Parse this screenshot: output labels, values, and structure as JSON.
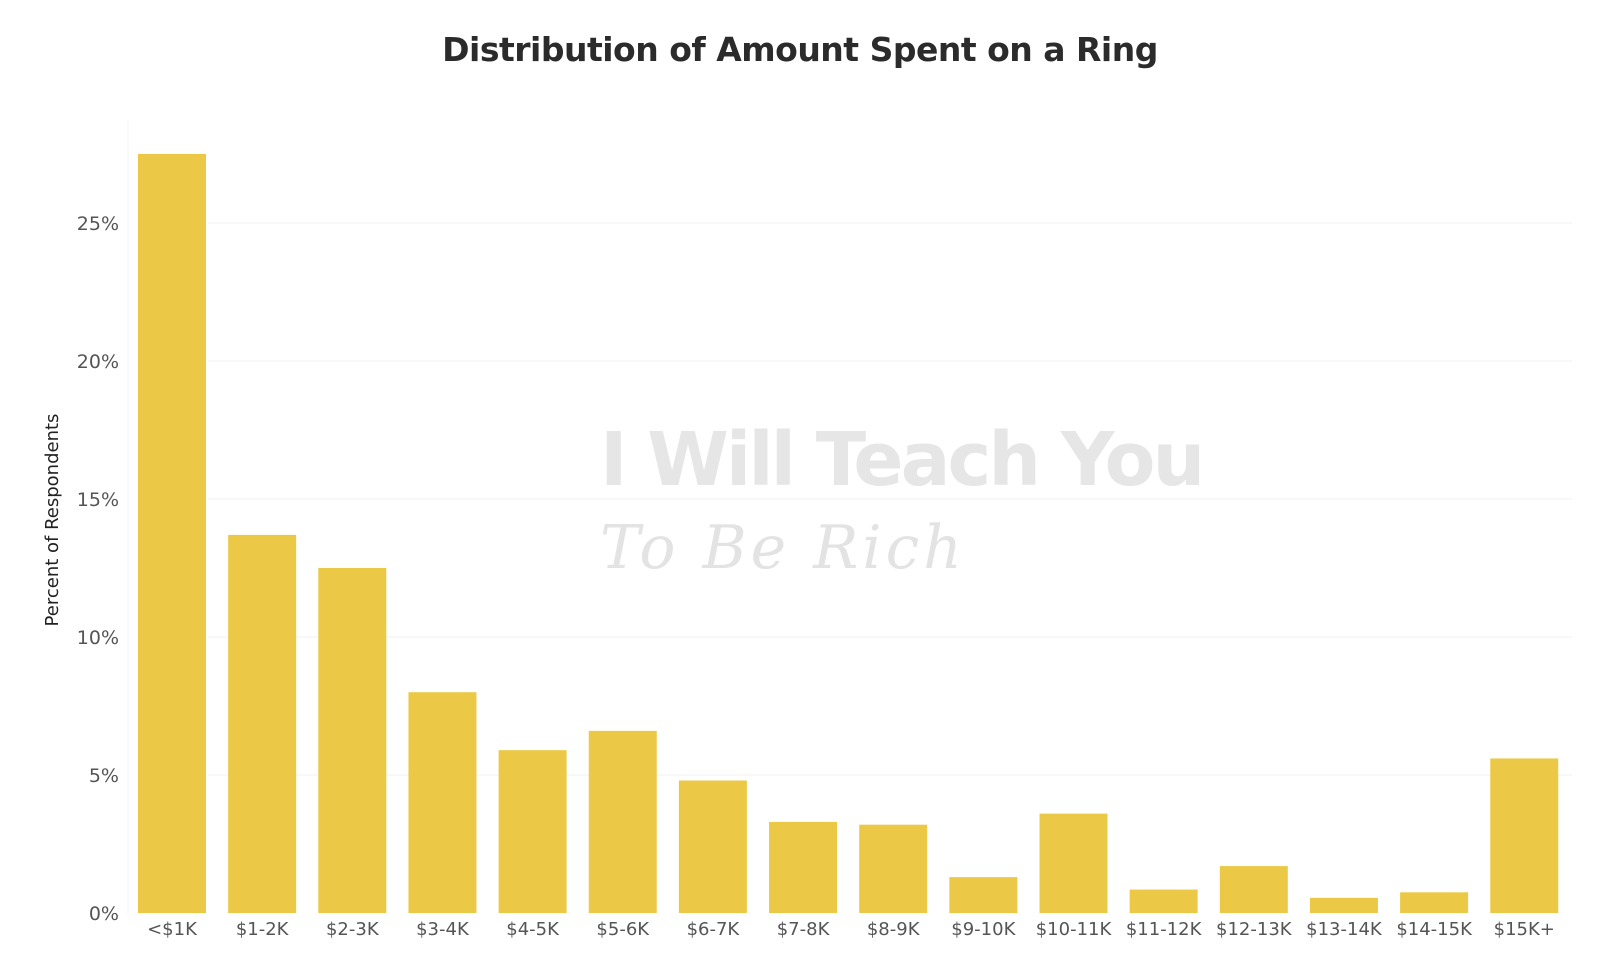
{
  "chart_data": {
    "type": "bar",
    "title": "Distribution of Amount Spent on a Ring",
    "xlabel": "",
    "ylabel": "Percent of Respondents",
    "ylim": [
      0,
      28.5
    ],
    "yticks": [
      "0%",
      "5%",
      "10%",
      "15%",
      "20%",
      "25%"
    ],
    "ytick_values": [
      0,
      5,
      10,
      15,
      20,
      25
    ],
    "grid": true,
    "categories": [
      "<$1K",
      "$1-2K",
      "$2-3K",
      "$3-4K",
      "$4-5K",
      "$5-6K",
      "$6-7K",
      "$7-8K",
      "$8-9K",
      "$9-10K",
      "$10-11K",
      "$11-12K",
      "$12-13K",
      "$13-14K",
      "$14-15K",
      "$15K+"
    ],
    "values": [
      27.5,
      13.7,
      12.5,
      8.0,
      5.9,
      6.6,
      4.8,
      3.3,
      3.2,
      1.3,
      3.6,
      0.85,
      1.7,
      0.55,
      0.75,
      5.6
    ],
    "bar_color": "#ebc947",
    "watermark": {
      "line1": "I Will Teach You",
      "line2": "To Be Rich"
    }
  }
}
